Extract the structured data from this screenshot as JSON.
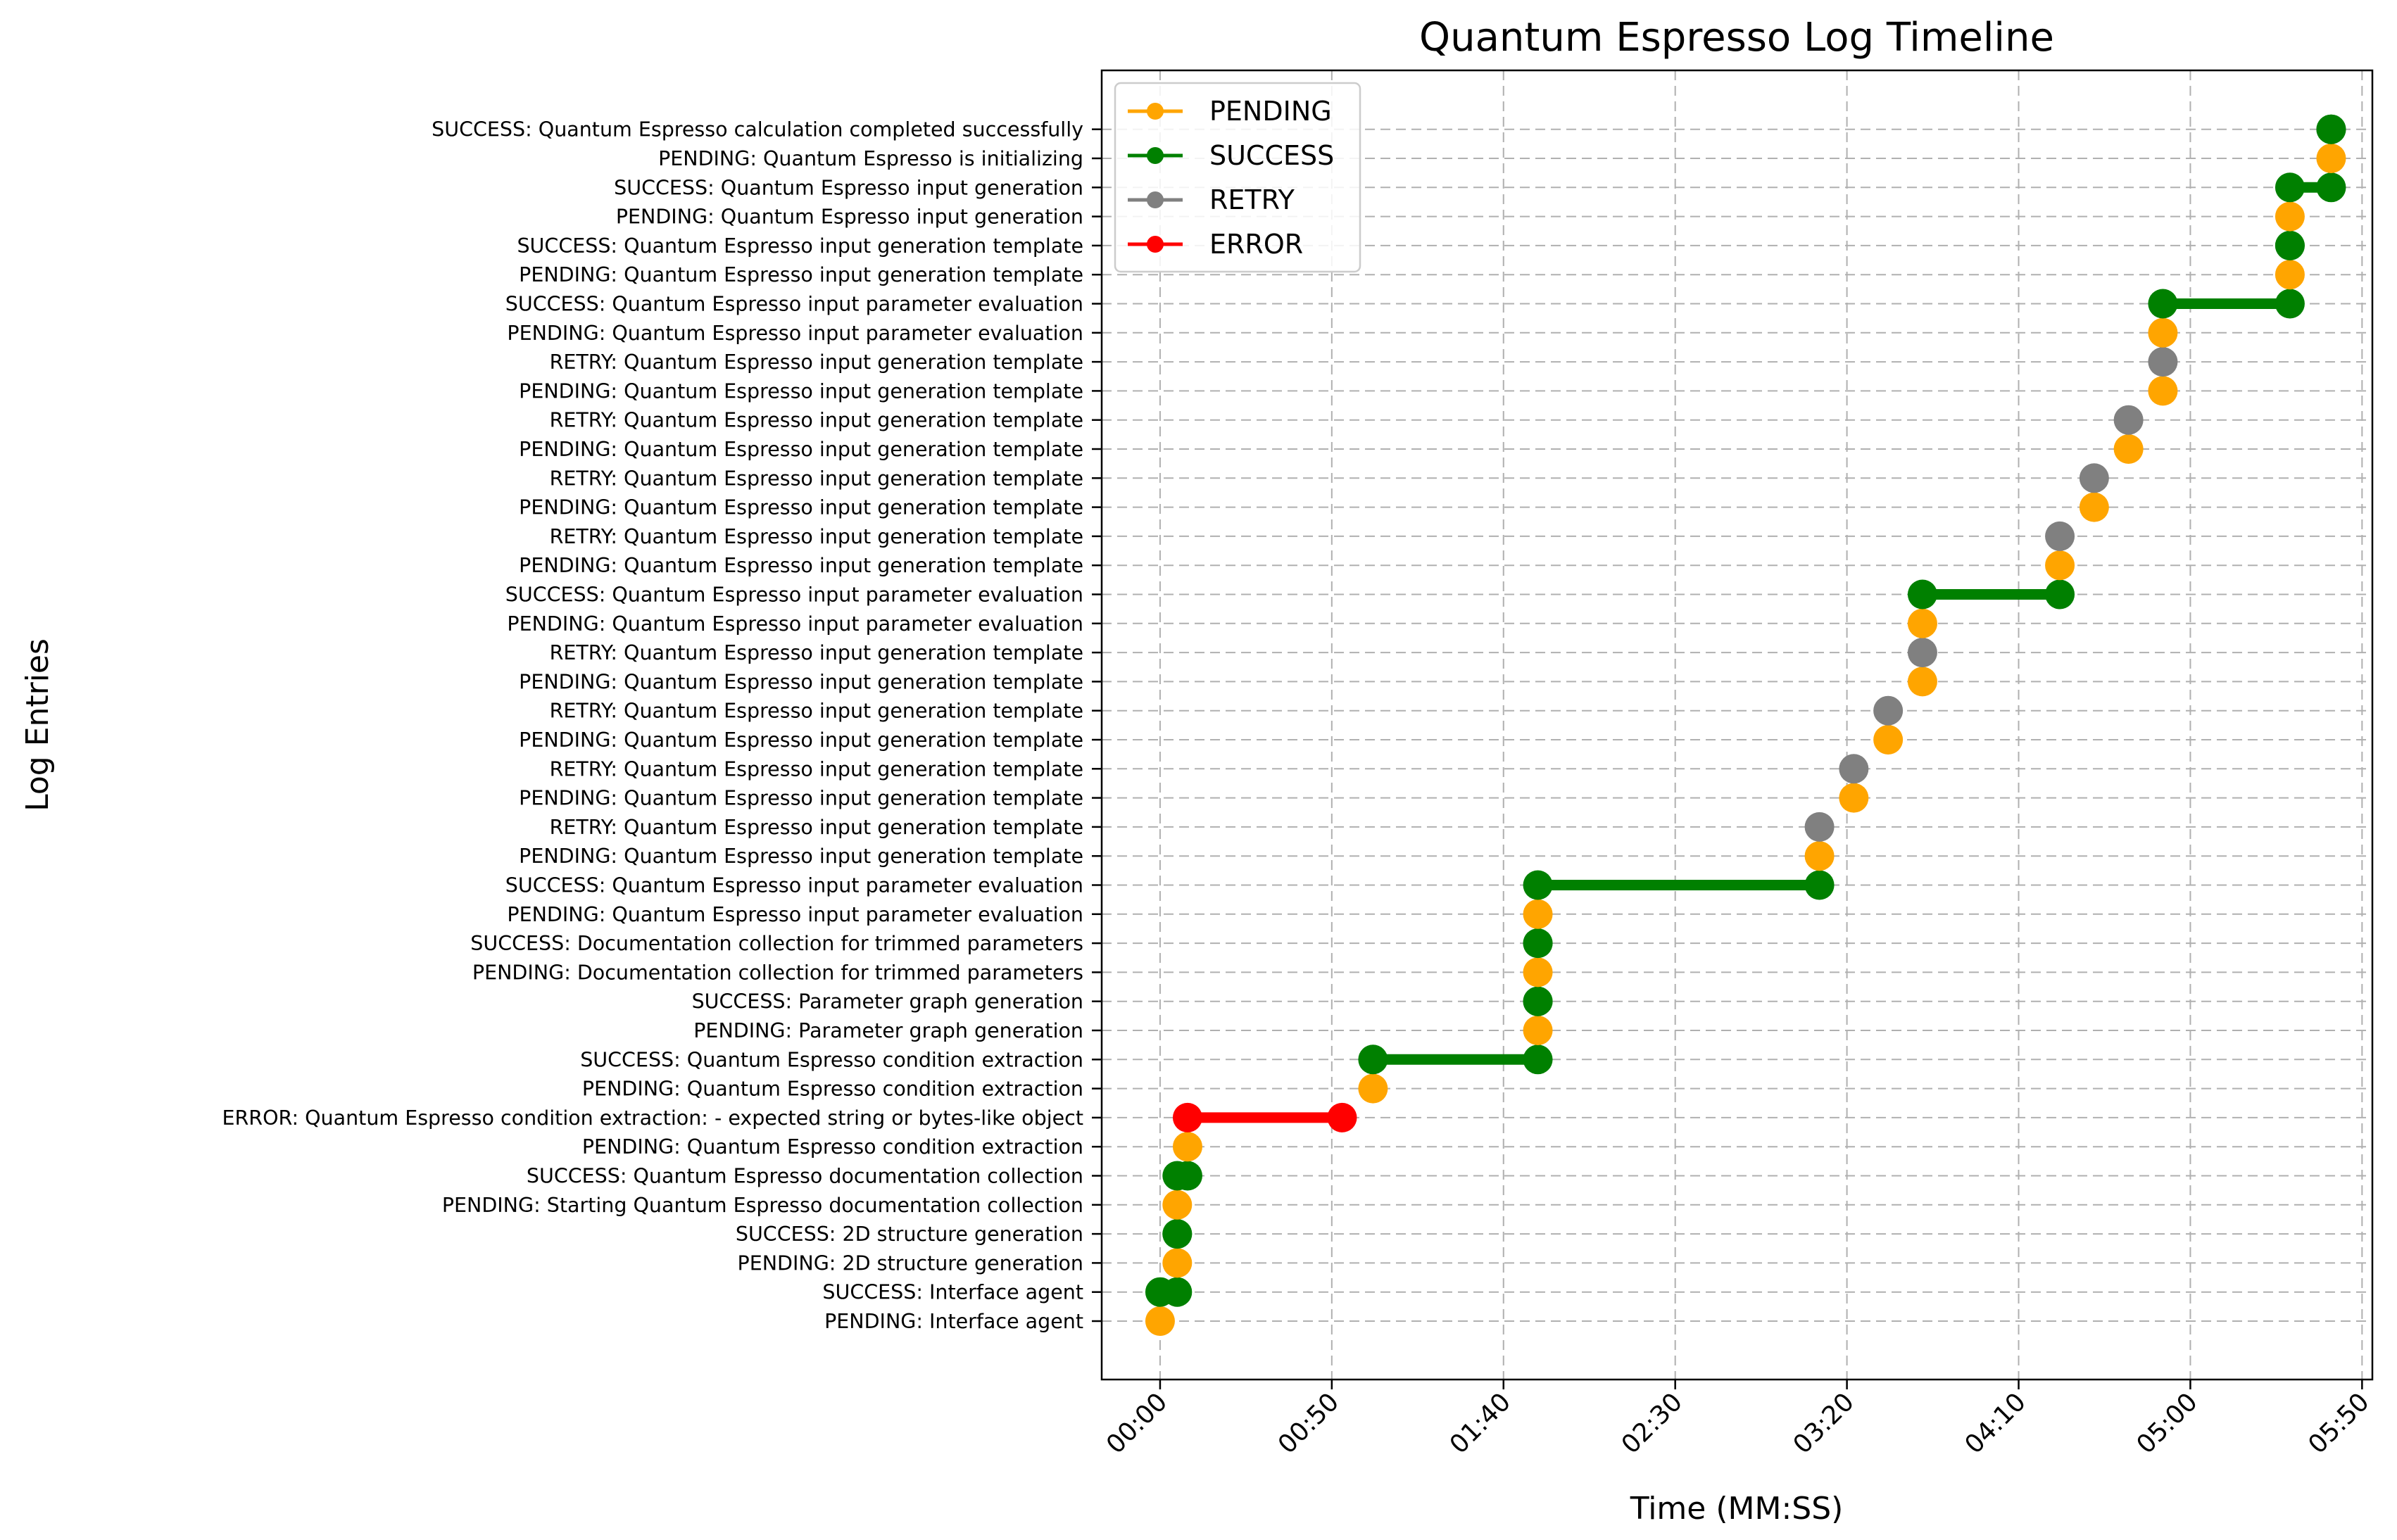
{
  "chart_data": {
    "type": "line",
    "title": "Quantum Espresso Log Timeline",
    "xlabel": "Time (MM:SS)",
    "ylabel": "Log Entries",
    "x_unit": "seconds",
    "xlim": [
      -17,
      353
    ],
    "x_ticks": [
      {
        "value": 0,
        "label": "00:00"
      },
      {
        "value": 50,
        "label": "00:50"
      },
      {
        "value": 100,
        "label": "01:40"
      },
      {
        "value": 150,
        "label": "02:30"
      },
      {
        "value": 200,
        "label": "03:20"
      },
      {
        "value": 250,
        "label": "04:10"
      },
      {
        "value": 300,
        "label": "05:00"
      },
      {
        "value": 350,
        "label": "05:50"
      }
    ],
    "grid": true,
    "legend_position": "top-left",
    "status_colors": {
      "PENDING": "#ffa500",
      "SUCCESS": "#008000",
      "RETRY": "#808080",
      "ERROR": "#ff0000"
    },
    "legend": [
      "PENDING",
      "SUCCESS",
      "RETRY",
      "ERROR"
    ],
    "entries": [
      {
        "label": "PENDING: Interface agent",
        "status": "PENDING",
        "x": [
          0
        ],
        "display": [
          0
        ]
      },
      {
        "label": "SUCCESS: Interface agent",
        "status": "SUCCESS",
        "x": [
          0,
          5
        ],
        "display": [
          0,
          5
        ]
      },
      {
        "label": "PENDING: 2D structure generation",
        "status": "PENDING",
        "x": [
          5
        ],
        "display": [
          5
        ]
      },
      {
        "label": "SUCCESS: 2D structure generation",
        "status": "SUCCESS",
        "x": [
          5,
          5
        ],
        "display": [
          5,
          5
        ]
      },
      {
        "label": "PENDING: Starting Quantum Espresso documentation collection",
        "status": "PENDING",
        "x": [
          5
        ],
        "display": [
          5
        ]
      },
      {
        "label": "SUCCESS: Quantum Espresso documentation collection",
        "status": "SUCCESS",
        "x": [
          5,
          8
        ],
        "display": [
          5,
          8
        ]
      },
      {
        "label": "PENDING: Quantum Espresso condition extraction",
        "status": "PENDING",
        "x": [
          8
        ],
        "display": [
          8
        ]
      },
      {
        "label": "ERROR: Quantum Espresso condition extraction: - expected string or bytes-like object",
        "status": "ERROR",
        "x": [
          8,
          53
        ],
        "display": [
          8,
          53
        ]
      },
      {
        "label": "PENDING: Quantum Espresso condition extraction",
        "status": "PENDING",
        "x": [
          62
        ],
        "display": [
          62
        ]
      },
      {
        "label": "SUCCESS: Quantum Espresso condition extraction",
        "status": "SUCCESS",
        "x": [
          62,
          110
        ],
        "display": [
          62,
          110
        ]
      },
      {
        "label": "PENDING: Parameter graph generation",
        "status": "PENDING",
        "x": [
          110
        ],
        "display": [
          110
        ]
      },
      {
        "label": "SUCCESS: Parameter graph generation",
        "status": "SUCCESS",
        "x": [
          110,
          110
        ],
        "display": [
          110,
          110
        ]
      },
      {
        "label": "PENDING: Documentation collection for trimmed parameters",
        "status": "PENDING",
        "x": [
          110
        ],
        "display": [
          110
        ]
      },
      {
        "label": "SUCCESS: Documentation collection for trimmed parameters",
        "status": "SUCCESS",
        "x": [
          110,
          110
        ],
        "display": [
          110,
          110
        ]
      },
      {
        "label": "PENDING: Quantum Espresso input parameter evaluation",
        "status": "PENDING",
        "x": [
          110
        ],
        "display": [
          110
        ]
      },
      {
        "label": "SUCCESS: Quantum Espresso input parameter evaluation",
        "status": "SUCCESS",
        "x": [
          110,
          192
        ],
        "display": [
          110,
          192
        ]
      },
      {
        "label": "PENDING: Quantum Espresso input generation template",
        "status": "PENDING",
        "x": [
          192
        ],
        "display": [
          192
        ]
      },
      {
        "label": "RETRY: Quantum Espresso input generation template",
        "status": "RETRY",
        "x": [
          192
        ],
        "display": [
          192
        ]
      },
      {
        "label": "PENDING: Quantum Espresso input generation template",
        "status": "PENDING",
        "x": [
          202
        ],
        "display": [
          202
        ]
      },
      {
        "label": "RETRY: Quantum Espresso input generation template",
        "status": "RETRY",
        "x": [
          202
        ],
        "display": [
          202
        ]
      },
      {
        "label": "PENDING: Quantum Espresso input generation template",
        "status": "PENDING",
        "x": [
          212
        ],
        "display": [
          212
        ]
      },
      {
        "label": "RETRY: Quantum Espresso input generation template",
        "status": "RETRY",
        "x": [
          212
        ],
        "display": [
          212
        ]
      },
      {
        "label": "PENDING: Quantum Espresso input generation template",
        "status": "PENDING",
        "x": [
          222
        ],
        "display": [
          222
        ]
      },
      {
        "label": "RETRY: Quantum Espresso input generation template",
        "status": "RETRY",
        "x": [
          222
        ],
        "display": [
          222
        ]
      },
      {
        "label": "PENDING: Quantum Espresso input parameter evaluation",
        "status": "PENDING",
        "x": [
          222
        ],
        "display": [
          222
        ]
      },
      {
        "label": "SUCCESS: Quantum Espresso input parameter evaluation",
        "status": "SUCCESS",
        "x": [
          222,
          262
        ],
        "display": [
          222,
          262
        ]
      },
      {
        "label": "PENDING: Quantum Espresso input generation template",
        "status": "PENDING",
        "x": [
          262
        ],
        "display": [
          262
        ]
      },
      {
        "label": "RETRY: Quantum Espresso input generation template",
        "status": "RETRY",
        "x": [
          262
        ],
        "display": [
          262
        ]
      },
      {
        "label": "PENDING: Quantum Espresso input generation template",
        "status": "PENDING",
        "x": [
          272
        ],
        "display": [
          272
        ]
      },
      {
        "label": "RETRY: Quantum Espresso input generation template",
        "status": "RETRY",
        "x": [
          272
        ],
        "display": [
          272
        ]
      },
      {
        "label": "PENDING: Quantum Espresso input generation template",
        "status": "PENDING",
        "x": [
          282
        ],
        "display": [
          282
        ]
      },
      {
        "label": "RETRY: Quantum Espresso input generation template",
        "status": "RETRY",
        "x": [
          282
        ],
        "display": [
          282
        ]
      },
      {
        "label": "PENDING: Quantum Espresso input generation template",
        "status": "PENDING",
        "x": [
          292
        ],
        "display": [
          292
        ]
      },
      {
        "label": "RETRY: Quantum Espresso input generation template",
        "status": "RETRY",
        "x": [
          292
        ],
        "display": [
          292
        ]
      },
      {
        "label": "PENDING: Quantum Espresso input parameter evaluation",
        "status": "PENDING",
        "x": [
          292
        ],
        "display": [
          292
        ]
      },
      {
        "label": "SUCCESS: Quantum Espresso input parameter evaluation",
        "status": "SUCCESS",
        "x": [
          292,
          329
        ],
        "display": [
          292,
          329
        ]
      },
      {
        "label": "PENDING: Quantum Espresso input generation template",
        "status": "PENDING",
        "x": [
          329
        ],
        "display": [
          329
        ]
      },
      {
        "label": "SUCCESS: Quantum Espresso input generation template",
        "status": "SUCCESS",
        "x": [
          329,
          329
        ],
        "display": [
          329,
          329
        ]
      },
      {
        "label": "PENDING: Quantum Espresso input generation",
        "status": "PENDING",
        "x": [
          329
        ],
        "display": [
          329
        ]
      },
      {
        "label": "SUCCESS: Quantum Espresso input generation",
        "status": "SUCCESS",
        "x": [
          329,
          341
        ],
        "display": [
          329,
          341
        ]
      },
      {
        "label": "PENDING: Quantum Espresso is initializing",
        "status": "PENDING",
        "x": [
          341
        ],
        "display": [
          341
        ]
      },
      {
        "label": "SUCCESS: Quantum Espresso calculation completed successfully",
        "status": "SUCCESS",
        "x": [
          341,
          341
        ],
        "display": [
          341,
          341
        ]
      }
    ]
  }
}
